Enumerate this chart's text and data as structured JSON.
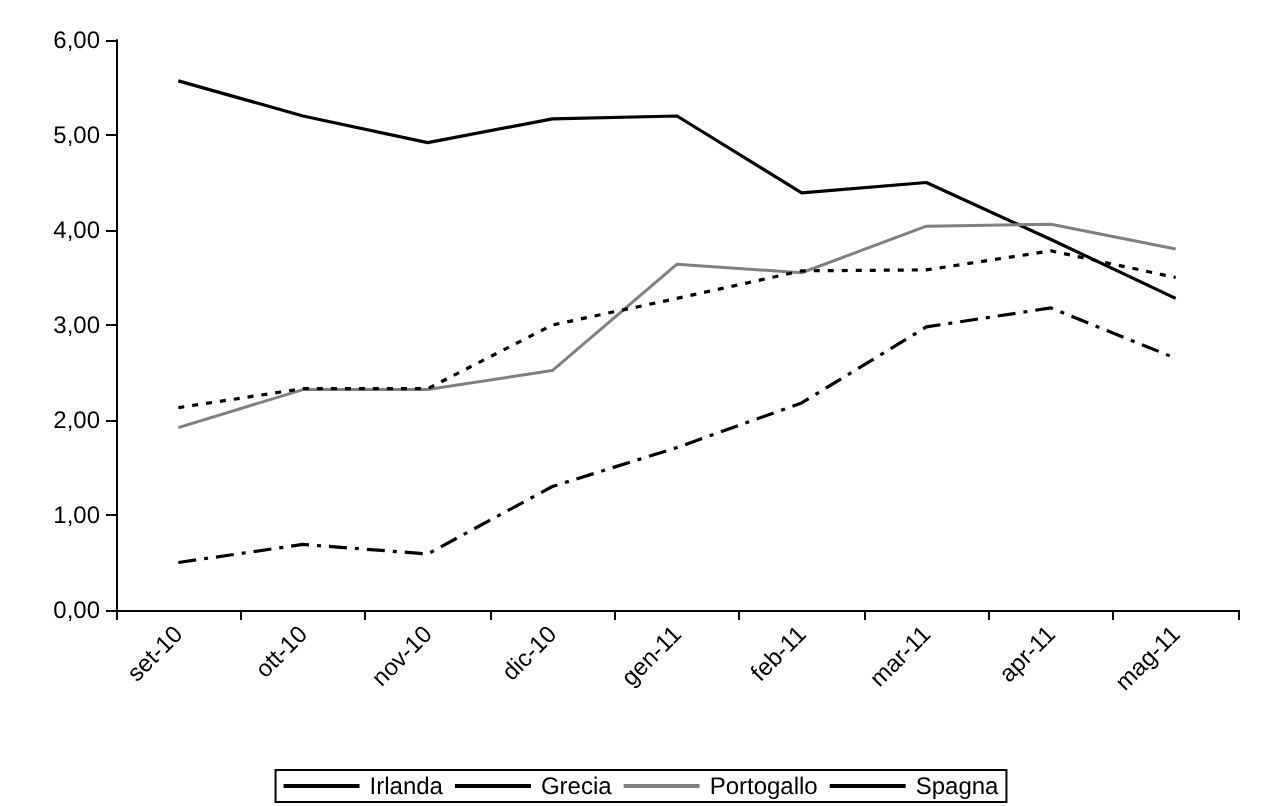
{
  "chart_data": {
    "type": "line",
    "categories": [
      "set-10",
      "ott-10",
      "nov-10",
      "dic-10",
      "gen-11",
      "feb-11",
      "mar-11",
      "apr-11",
      "mag-11"
    ],
    "series": [
      {
        "name": "Irlanda",
        "color": "#000000",
        "line_style": "dashed",
        "values": [
          0.5,
          0.69,
          0.59,
          1.3,
          1.71,
          2.18,
          2.98,
          3.18,
          2.65
        ]
      },
      {
        "name": "Grecia",
        "color": "#000000",
        "line_style": "solid",
        "values": [
          5.57,
          5.2,
          4.92,
          5.17,
          5.2,
          4.39,
          4.5,
          3.9,
          3.28
        ]
      },
      {
        "name": "Portogallo",
        "color": "#808080",
        "line_style": "solid",
        "values": [
          1.92,
          2.32,
          2.32,
          2.52,
          3.64,
          3.55,
          4.04,
          4.06,
          3.8
        ]
      },
      {
        "name": "Spagna",
        "color": "#000000",
        "line_style": "dotted",
        "values": [
          2.13,
          2.33,
          2.33,
          3.0,
          3.28,
          3.57,
          3.58,
          3.78,
          3.5
        ]
      }
    ],
    "ylim": [
      0,
      6
    ],
    "yticks": [
      {
        "value": 0,
        "label": "0,00"
      },
      {
        "value": 1,
        "label": "1,00"
      },
      {
        "value": 2,
        "label": "2,00"
      },
      {
        "value": 3,
        "label": "3,00"
      },
      {
        "value": 4,
        "label": "4,00"
      },
      {
        "value": 5,
        "label": "5,00"
      },
      {
        "value": 6,
        "label": "6,00"
      }
    ],
    "grid": false,
    "legend": "bottom",
    "marker": "none"
  }
}
